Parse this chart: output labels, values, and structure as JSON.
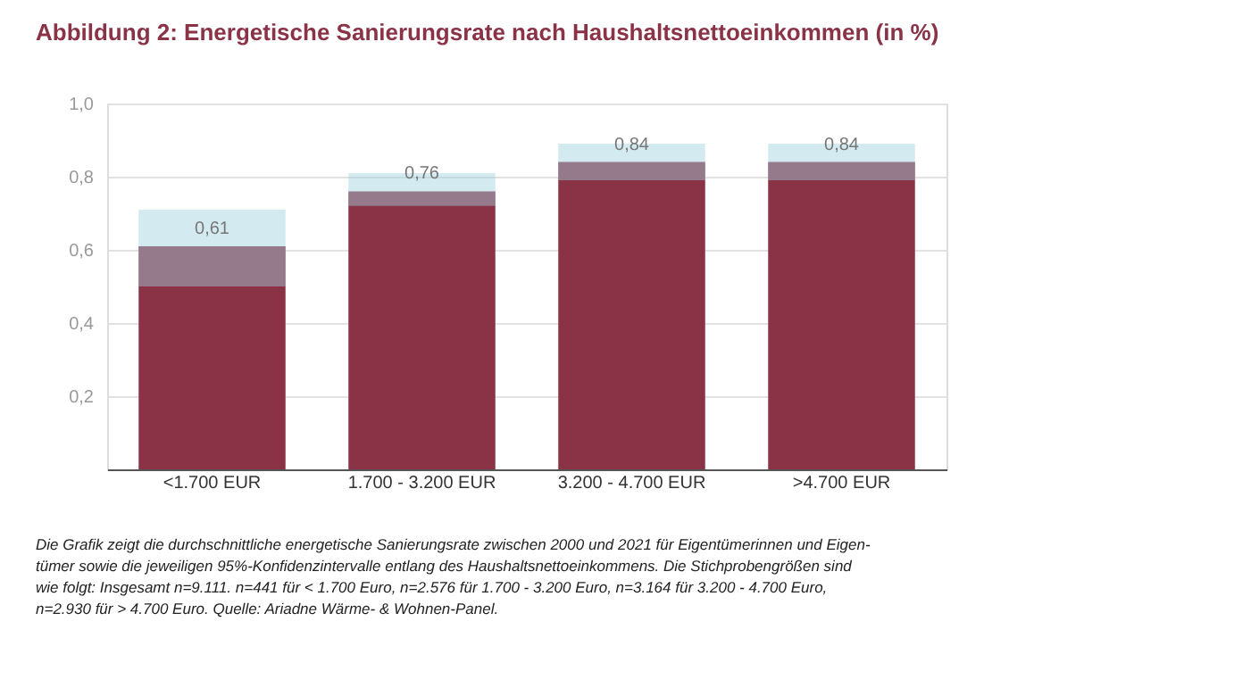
{
  "chart_data": {
    "type": "bar",
    "title": "Abbildung 2: Energetische Sanierungsrate nach Haushaltsnettoeinkommen (in %)",
    "categories": [
      "<1.700 EUR",
      "1.700 - 3.200 EUR",
      "3.200 - 4.700 EUR",
      ">4.700 EUR"
    ],
    "values": [
      0.61,
      0.76,
      0.84,
      0.84
    ],
    "color": "#8b3346",
    "errors": [
      [
        0.5,
        0.71
      ],
      [
        0.72,
        0.81
      ],
      [
        0.79,
        0.89
      ],
      [
        0.79,
        0.89
      ]
    ],
    "value_labels": [
      "0,61",
      "0,76",
      "0,84",
      "0,84"
    ],
    "ylim": [
      0,
      1.0
    ],
    "yticks": [
      {
        "value": 0,
        "label": null
      },
      {
        "value": 0.2,
        "label": "0,2"
      },
      {
        "value": 0.4,
        "label": "0,4"
      },
      {
        "value": 0.6,
        "label": "0,6"
      },
      {
        "value": 0.8,
        "label": "0,8"
      },
      {
        "value": 1.0,
        "label": "1,0"
      }
    ],
    "grid": "y",
    "annotations": [
      "Die Grafik zeigt die durchschnittliche energetische Sanierungsrate zwischen 2000 und 2021 für Eigentümerinnen und Eigen-\ntümer sowie die jeweiligen 95%-Konfidenzintervalle entlang des Haushaltsnettoeinkommens. Die  Stichprobengrößen sind\nwie folgt: Insgesamt n=9.111. n=441 für < 1.700 Euro, n=2.576 für 1.700 - 3.200 Euro, n=3.164 für 3.200 - 4.700 Euro,\nn=2.930 für > 4.700 Euro. Quelle: Ariadne Wärme- & Wohnen-Panel."
    ]
  }
}
